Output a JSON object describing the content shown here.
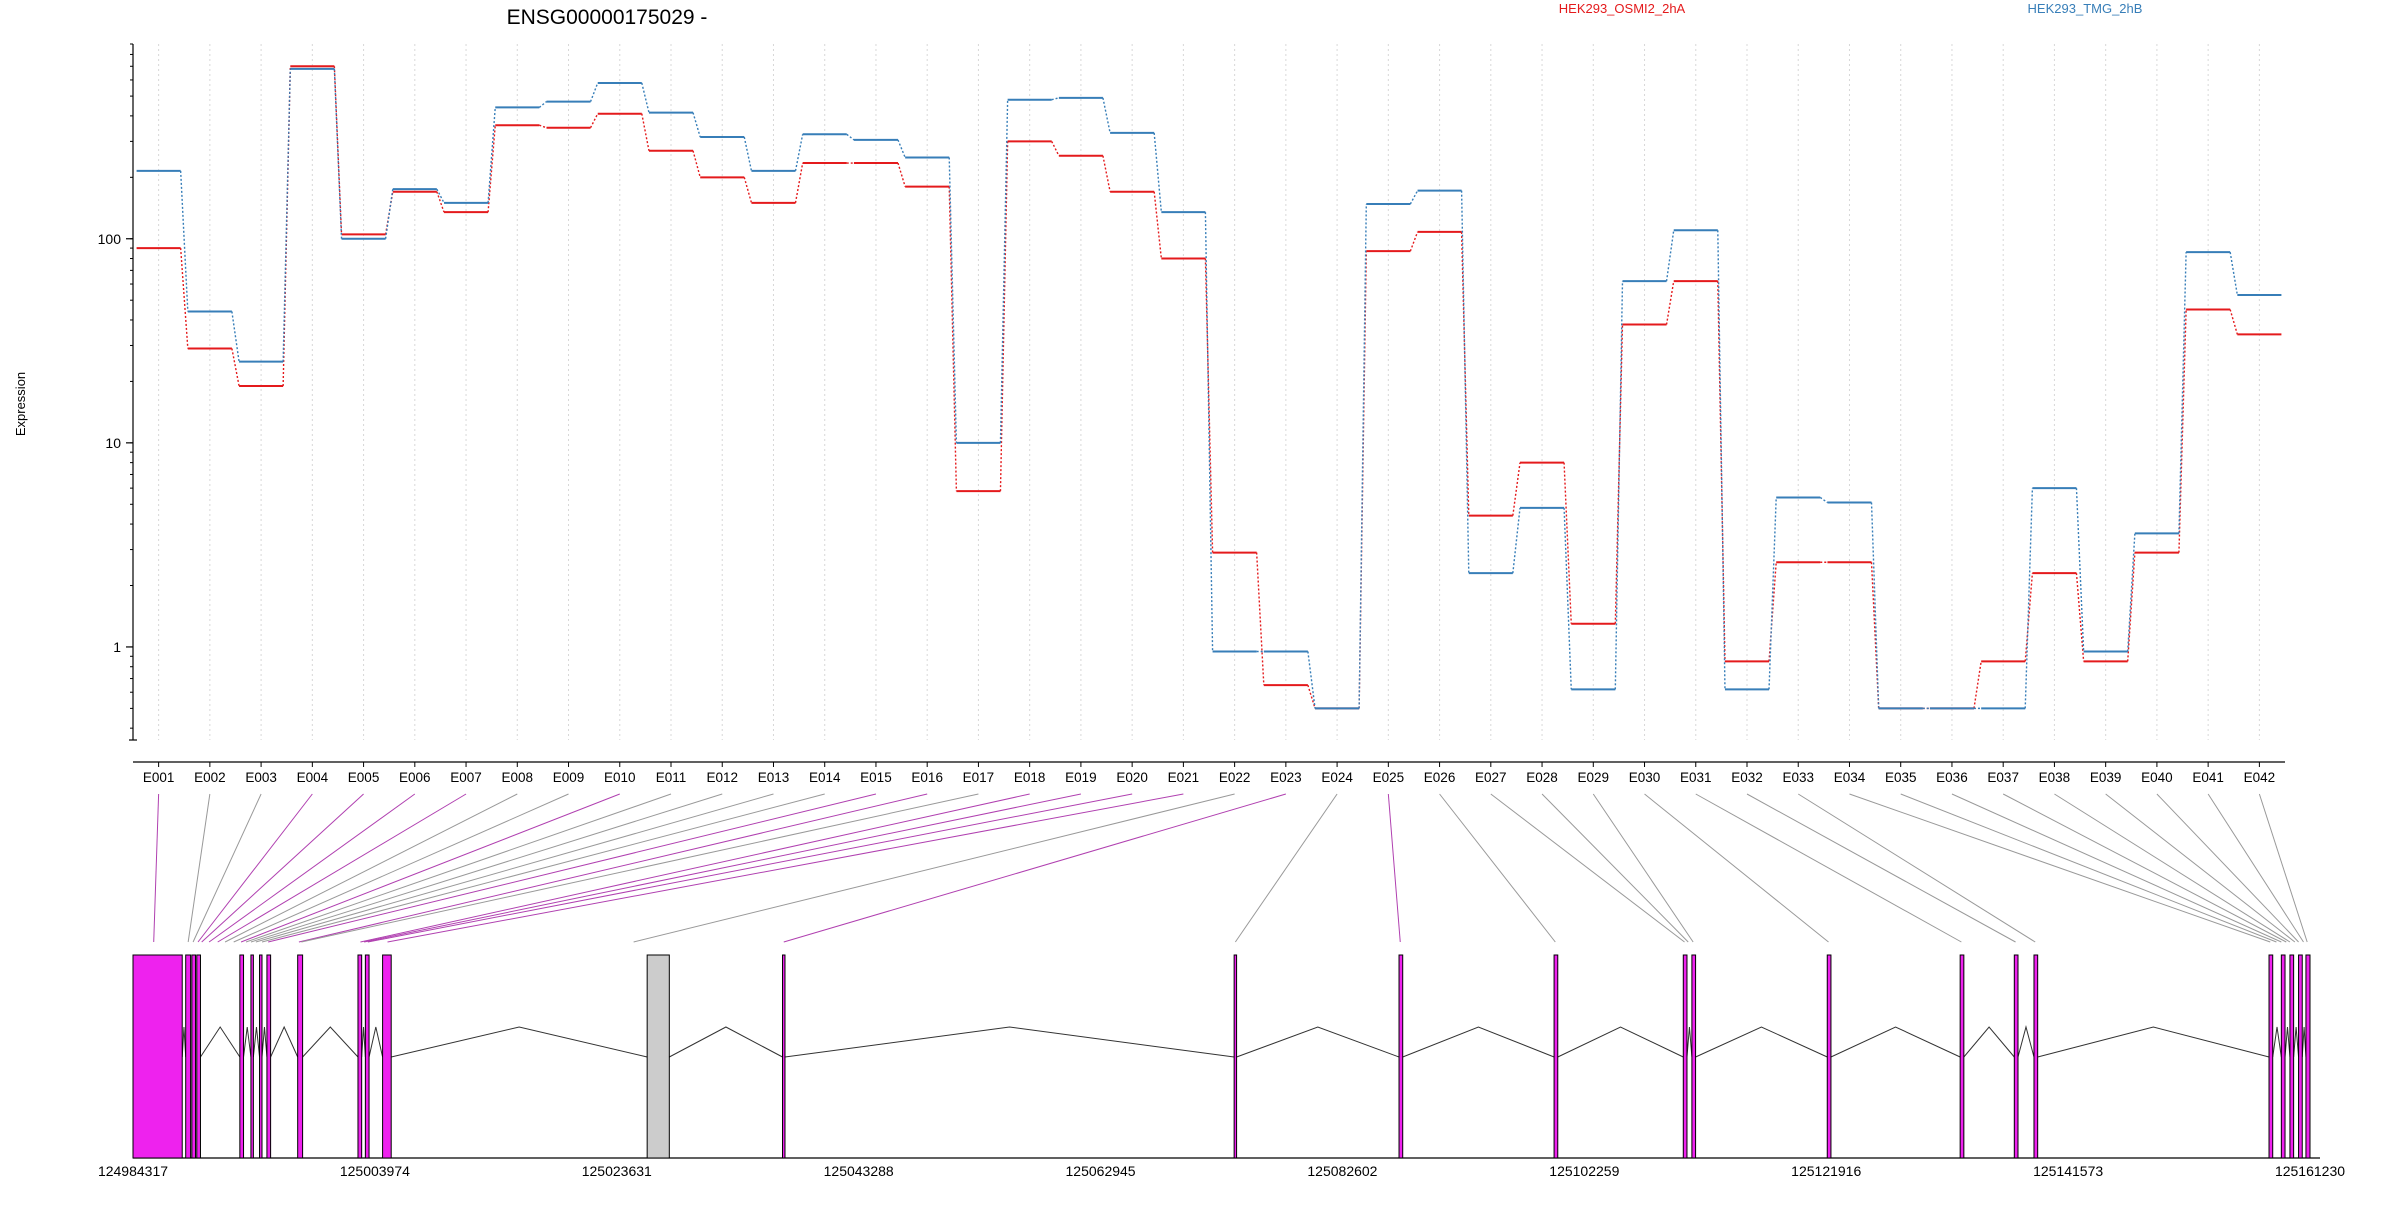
{
  "title": "ENSG00000175029 -",
  "colors": {
    "series_a": "#e41a1c",
    "series_b": "#377eb8",
    "skipped_exon": "#ee22ee",
    "constitutive_exon": "#cccccc",
    "connector_gray": "#999999",
    "connector_magenta": "#b040b0"
  },
  "chart_data": {
    "type": "line",
    "ylabel": "Expression",
    "yscale": "log",
    "ylim": [
      0.35,
      900
    ],
    "yticks": [
      1,
      10,
      100
    ],
    "ytick_labels": [
      "1",
      "10",
      "100"
    ],
    "grid": "vertical dotted at each exon",
    "legend_placement": "top",
    "categories": [
      "E001",
      "E002",
      "E003",
      "E004",
      "E005",
      "E006",
      "E007",
      "E008",
      "E009",
      "E010",
      "E011",
      "E012",
      "E013",
      "E014",
      "E015",
      "E016",
      "E017",
      "E018",
      "E019",
      "E020",
      "E021",
      "E022",
      "E023",
      "E024",
      "E025",
      "E026",
      "E027",
      "E028",
      "E029",
      "E030",
      "E031",
      "E032",
      "E033",
      "E034",
      "E035",
      "E036",
      "E037",
      "E038",
      "E039",
      "E040",
      "E041",
      "E042"
    ],
    "series": [
      {
        "name": "HEK293_OSMI2_2hA",
        "color": "#e41a1c",
        "values": [
          90,
          29,
          19,
          700,
          105,
          170,
          135,
          360,
          350,
          410,
          270,
          200,
          150,
          235,
          235,
          180,
          5.8,
          300,
          255,
          170,
          80,
          2.9,
          0.65,
          0.5,
          87,
          108,
          4.4,
          8,
          1.3,
          38,
          62,
          0.85,
          2.6,
          2.6,
          0.5,
          0.5,
          0.85,
          2.3,
          0.85,
          2.9,
          45,
          34
        ]
      },
      {
        "name": "HEK293_TMG_2hB",
        "color": "#377eb8",
        "values": [
          215,
          44,
          25,
          680,
          100,
          175,
          150,
          440,
          470,
          580,
          415,
          315,
          215,
          325,
          305,
          250,
          10,
          480,
          490,
          330,
          135,
          0.95,
          0.95,
          0.5,
          148,
          172,
          2.3,
          4.8,
          0.62,
          62,
          110,
          0.62,
          5.4,
          5.1,
          0.5,
          0.5,
          0.5,
          6,
          0.95,
          3.6,
          86,
          53
        ]
      }
    ]
  },
  "gene_model": {
    "coord_ticks": [
      "124984317",
      "125003974",
      "125023631",
      "125043288",
      "125062945",
      "125082602",
      "125102259",
      "125121916",
      "125141573",
      "125161230"
    ],
    "coord_start": 124984317,
    "coord_end": 125161230,
    "exons": [
      {
        "s": 124984317,
        "e": 124988317,
        "c": "#ee22ee"
      },
      {
        "s": 124988600,
        "e": 124989000,
        "c": "#ee22ee"
      },
      {
        "s": 124989100,
        "e": 124989400,
        "c": "#ee22ee"
      },
      {
        "s": 124989500,
        "e": 124989800,
        "c": "#ee22ee"
      },
      {
        "s": 124993000,
        "e": 124993300,
        "c": "#ee22ee"
      },
      {
        "s": 124993900,
        "e": 124994100,
        "c": "#ee22ee"
      },
      {
        "s": 124994600,
        "e": 124994800,
        "c": "#ee22ee"
      },
      {
        "s": 124995200,
        "e": 124995500,
        "c": "#ee22ee"
      },
      {
        "s": 124997700,
        "e": 124998100,
        "c": "#ee22ee"
      },
      {
        "s": 125002600,
        "e": 125002900,
        "c": "#ee22ee"
      },
      {
        "s": 125003200,
        "e": 125003500,
        "c": "#ee22ee"
      },
      {
        "s": 125004600,
        "e": 125005300,
        "c": "#ee22ee"
      },
      {
        "s": 125026100,
        "e": 125027900,
        "c": "#cccccc"
      },
      {
        "s": 125037100,
        "e": 125037300,
        "c": "#ee22ee"
      },
      {
        "s": 125073800,
        "e": 125074000,
        "c": "#ee22ee"
      },
      {
        "s": 125087200,
        "e": 125087500,
        "c": "#ee22ee"
      },
      {
        "s": 125099800,
        "e": 125100100,
        "c": "#ee22ee"
      },
      {
        "s": 125110300,
        "e": 125110600,
        "c": "#ee22ee"
      },
      {
        "s": 125111000,
        "e": 125111300,
        "c": "#ee22ee"
      },
      {
        "s": 125122000,
        "e": 125122300,
        "c": "#ee22ee"
      },
      {
        "s": 125132800,
        "e": 125133100,
        "c": "#ee22ee"
      },
      {
        "s": 125137200,
        "e": 125137500,
        "c": "#ee22ee"
      },
      {
        "s": 125138800,
        "e": 125139100,
        "c": "#ee22ee"
      },
      {
        "s": 125157900,
        "e": 125158200,
        "c": "#ee22ee"
      },
      {
        "s": 125158900,
        "e": 125159200,
        "c": "#ee22ee"
      },
      {
        "s": 125159600,
        "e": 125159900,
        "c": "#ee22ee"
      },
      {
        "s": 125160300,
        "e": 125160600,
        "c": "#ee22ee"
      },
      {
        "s": 125160900,
        "e": 125161230,
        "c": "#ee22ee"
      }
    ],
    "exon_map": [
      {
        "g": 124986000,
        "c": "m"
      },
      {
        "g": 124988800,
        "c": "g"
      },
      {
        "g": 124989200,
        "c": "g"
      },
      {
        "g": 124989600,
        "c": "m"
      },
      {
        "g": 124989900,
        "c": "m"
      },
      {
        "g": 124990500,
        "c": "m"
      },
      {
        "g": 124991200,
        "c": "m"
      },
      {
        "g": 124991800,
        "c": "g"
      },
      {
        "g": 124992500,
        "c": "g"
      },
      {
        "g": 124993100,
        "c": "m"
      },
      {
        "g": 124993500,
        "c": "g"
      },
      {
        "g": 124993900,
        "c": "g"
      },
      {
        "g": 124994300,
        "c": "g"
      },
      {
        "g": 124994800,
        "c": "g"
      },
      {
        "g": 124995300,
        "c": "m"
      },
      {
        "g": 124997800,
        "c": "m"
      },
      {
        "g": 124998000,
        "c": "g"
      },
      {
        "g": 125002800,
        "c": "m"
      },
      {
        "g": 125003100,
        "c": "m"
      },
      {
        "g": 125003400,
        "c": "m"
      },
      {
        "g": 125005000,
        "c": "m"
      },
      {
        "g": 125025000,
        "c": "g"
      },
      {
        "g": 125037200,
        "c": "m"
      },
      {
        "g": 125073900,
        "c": "g"
      },
      {
        "g": 125087300,
        "c": "m"
      },
      {
        "g": 125099900,
        "c": "g"
      },
      {
        "g": 125110400,
        "c": "g"
      },
      {
        "g": 125110700,
        "c": "g"
      },
      {
        "g": 125111100,
        "c": "g"
      },
      {
        "g": 125122100,
        "c": "g"
      },
      {
        "g": 125132900,
        "c": "g"
      },
      {
        "g": 125137300,
        "c": "g"
      },
      {
        "g": 125138900,
        "c": "g"
      },
      {
        "g": 125158000,
        "c": "g"
      },
      {
        "g": 125158500,
        "c": "g"
      },
      {
        "g": 125158900,
        "c": "g"
      },
      {
        "g": 125159300,
        "c": "g"
      },
      {
        "g": 125159600,
        "c": "g"
      },
      {
        "g": 125160000,
        "c": "g"
      },
      {
        "g": 125160300,
        "c": "g"
      },
      {
        "g": 125160700,
        "c": "g"
      },
      {
        "g": 125161000,
        "c": "g"
      }
    ]
  }
}
